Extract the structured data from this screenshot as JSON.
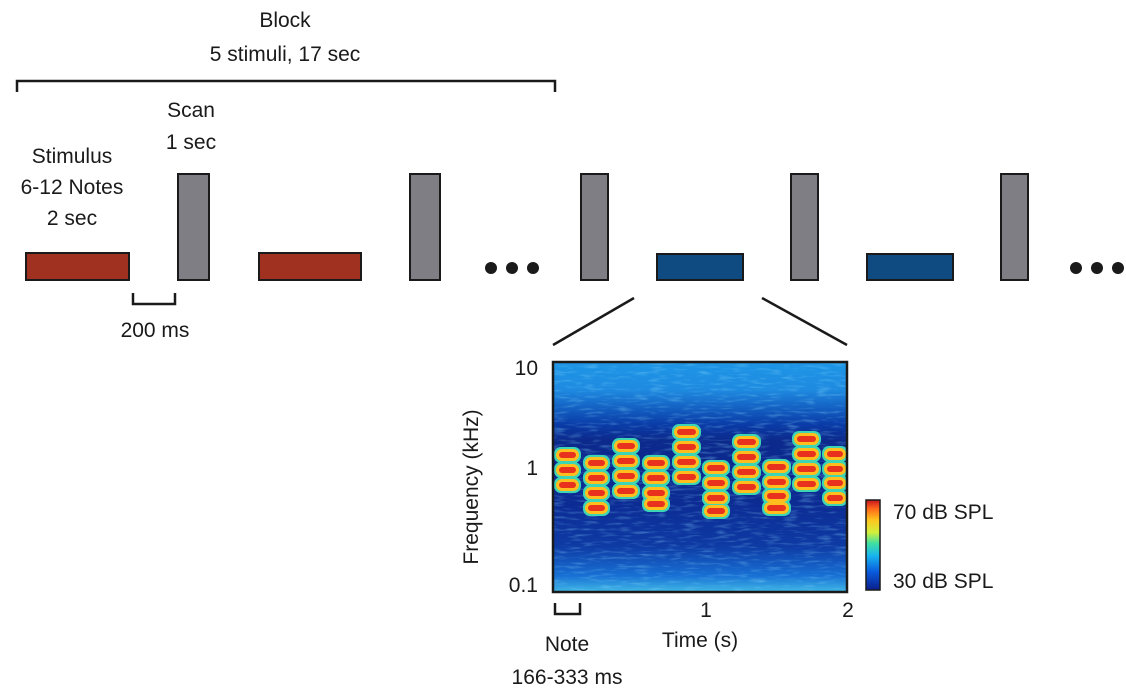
{
  "block": {
    "title": "Block",
    "subtitle": "5 stimuli, 17 sec"
  },
  "stimulus": {
    "line1": "Stimulus",
    "line2": "6-12 Notes",
    "line3": "2 sec"
  },
  "scan": {
    "line1": "Scan",
    "line2": "1 sec"
  },
  "gap_label": "200 ms",
  "colors": {
    "stimulus_red": "#a0301f",
    "stimulus_blue": "#0f4a80",
    "scan_gray": "#7f7e84",
    "outline": "#1a1a1a"
  },
  "spectrogram": {
    "y_axis_title": "Frequency (kHz)",
    "y_ticks": [
      "10",
      "1",
      "0.1"
    ],
    "x_axis_title": "Time (s)",
    "x_ticks": [
      "1",
      "2"
    ],
    "note_label_line1": "Note",
    "note_label_line2": "166-333 ms",
    "colorbar_max": "70 dB SPL",
    "colorbar_min": "30 dB SPL"
  }
}
